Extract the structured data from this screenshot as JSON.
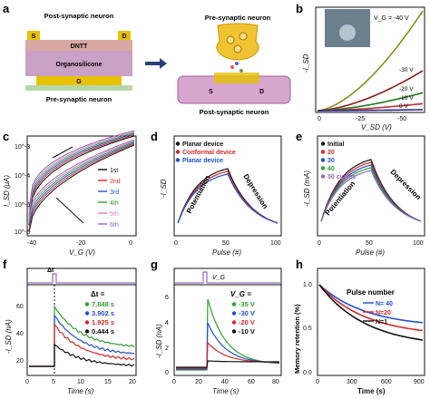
{
  "panel_labels": [
    "a",
    "b",
    "c",
    "d",
    "e",
    "f",
    "g",
    "h"
  ],
  "panel_a": {
    "top_text": "Post-synaptic neuron",
    "bottom_text": "Pre-synaptic neuron",
    "layers": {
      "dntt": "DNTT",
      "organo": "Organosilicone",
      "g": "G",
      "s": "S",
      "d": "D"
    },
    "right_top": "Pre-synaptic neuron",
    "right_bottom": "Post-synaptic neuron",
    "right_s": "S",
    "right_d": "D",
    "colors": {
      "dntt": "#d9a8a3",
      "organo": "#c9a0c6",
      "gold": "#e6c200",
      "substrate": "#b7d7a8"
    }
  },
  "chart_data": [
    {
      "id": "b",
      "type": "line",
      "xlabel": "V_SD (V)",
      "ylabel": "-I_SD",
      "x_ticks": [
        "0",
        "-25",
        "-50"
      ],
      "vg_title": "V_G = -40 V",
      "series": [
        {
          "name": "-40 V",
          "color": "#8c8c1a",
          "end_y": 1.0
        },
        {
          "name": "-30 V",
          "color": "#8b1a1a",
          "end_y": 0.4
        },
        {
          "name": "-20 V",
          "color": "#1a7a1a",
          "end_y": 0.18
        },
        {
          "name": "-10 V",
          "color": "#c03030",
          "end_y": 0.07
        },
        {
          "name": "0 V",
          "color": "#2a2a8a",
          "end_y": 0.01
        }
      ]
    },
    {
      "id": "c",
      "type": "line",
      "xlabel": "V_G (V)",
      "ylabel": "I_SD (μA)",
      "x_ticks": [
        "-40",
        "-20",
        "0"
      ],
      "y_ticks": [
        "10^-3",
        "10^-4",
        "10^-5",
        "10^-6"
      ],
      "legend": [
        "1st",
        "2nd",
        "3rd",
        "4th",
        "5th",
        "6th"
      ],
      "colors": [
        "#111111",
        "#d62728",
        "#1f4fd6",
        "#2ca02c",
        "#e377c2",
        "#9467bd"
      ]
    },
    {
      "id": "d",
      "type": "line",
      "xlabel": "Pulse (#)",
      "ylabel": "-I_SD",
      "x_ticks": [
        "0",
        "50",
        "100"
      ],
      "legend": [
        "Planar device",
        "Conformal device",
        "Planar device"
      ],
      "colors": [
        "#111111",
        "#d62728",
        "#1f4fd6"
      ],
      "annotations": [
        "Potentiation",
        "Depression"
      ]
    },
    {
      "id": "e",
      "type": "line",
      "xlabel": "Pulse (#)",
      "ylabel": "-I_SD (mA)",
      "x_ticks": [
        "0",
        "50",
        "100"
      ],
      "legend": [
        "Initial",
        "20",
        "30",
        "40",
        "50 cycles"
      ],
      "colors": [
        "#111111",
        "#d62728",
        "#1f4fd6",
        "#2ca02c",
        "#9467bd"
      ],
      "annotations": [
        "Potentiation",
        "Depression"
      ]
    },
    {
      "id": "f",
      "type": "line",
      "xlabel": "Time (s)",
      "ylabel": "-I_SD (nA)",
      "x_ticks": [
        "0",
        "5",
        "10",
        "15",
        "20"
      ],
      "y_ticks": [
        "20",
        "40",
        "60"
      ],
      "pulse_label": "Δt",
      "legend_title": "Δt =",
      "legend": [
        "7.848 s",
        "3.902 s",
        "1.925 s",
        "0.444 s"
      ],
      "colors": [
        "#2ca02c",
        "#1f4fd6",
        "#d62728",
        "#111111"
      ]
    },
    {
      "id": "g",
      "type": "line",
      "xlabel": "Time (s)",
      "ylabel": "-I_SD (nA)",
      "x_ticks": [
        "0",
        "20",
        "40",
        "60",
        "80"
      ],
      "y_ticks": [
        "0",
        "2",
        "4",
        "6"
      ],
      "legend_title": "V_G =",
      "legend": [
        "-35 V",
        "-30 V",
        "-20 V",
        "-10 V"
      ],
      "colors": [
        "#2ca02c",
        "#1f4fd6",
        "#d62728",
        "#111111"
      ],
      "vg_label": "V_G"
    },
    {
      "id": "h",
      "type": "line",
      "xlabel": "Time (s)",
      "ylabel": "Memory retention (%)",
      "x_ticks": [
        "0",
        "300",
        "600",
        "900"
      ],
      "y_ticks": [
        "0.0",
        "0.5",
        "1.0"
      ],
      "legend_title": "Pulse number",
      "legend": [
        "N= 40",
        "N=20",
        "N=1"
      ],
      "colors": [
        "#1f4fd6",
        "#d62728",
        "#111111"
      ]
    }
  ]
}
